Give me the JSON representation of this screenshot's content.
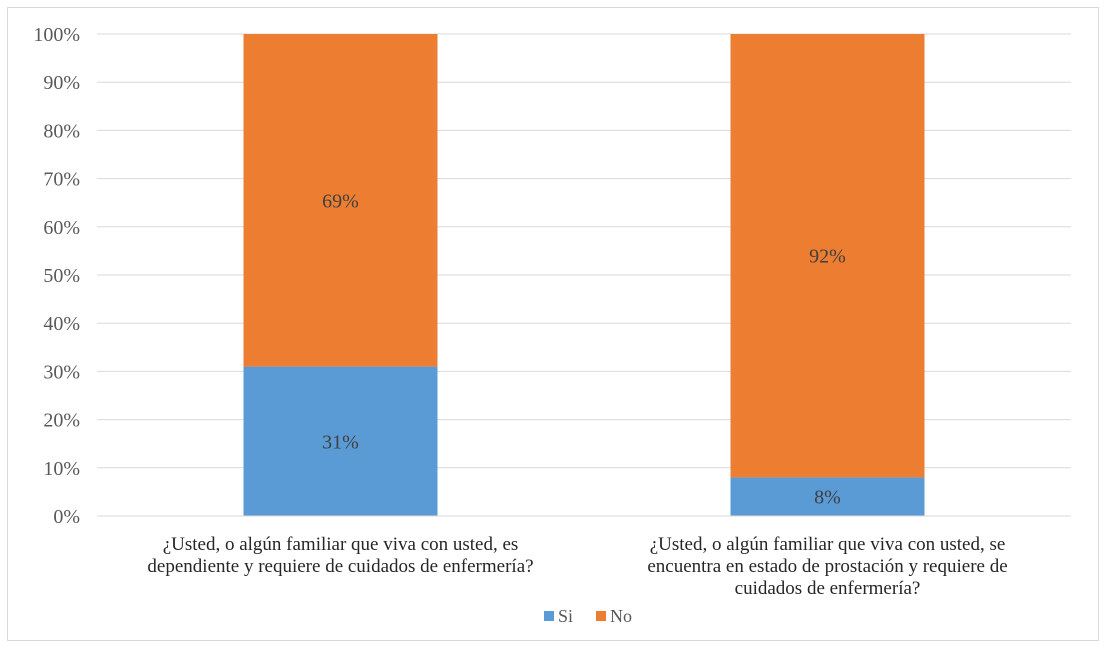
{
  "chart_data": {
    "type": "bar",
    "stacked": true,
    "categories": [
      [
        "¿Usted, o algún familiar que viva con usted, es",
        "dependiente y requiere de cuidados de enfermería?"
      ],
      [
        "¿Usted, o algún familiar que viva con usted, se",
        "encuentra en estado de prostación y requiere de",
        "cuidados de enfermería?"
      ]
    ],
    "series": [
      {
        "name": "Si",
        "color": "#5b9bd5",
        "values": [
          31,
          8
        ],
        "labels": [
          "31%",
          "8%"
        ]
      },
      {
        "name": "No",
        "color": "#ed7d31",
        "values": [
          69,
          92
        ],
        "labels": [
          "69%",
          "92%"
        ]
      }
    ],
    "yticks": [
      "0%",
      "10%",
      "20%",
      "30%",
      "40%",
      "50%",
      "60%",
      "70%",
      "80%",
      "90%",
      "100%"
    ],
    "ylim": [
      0,
      100
    ],
    "grid": true,
    "legend": "bottom",
    "title": "",
    "xlabel": "",
    "ylabel": ""
  }
}
